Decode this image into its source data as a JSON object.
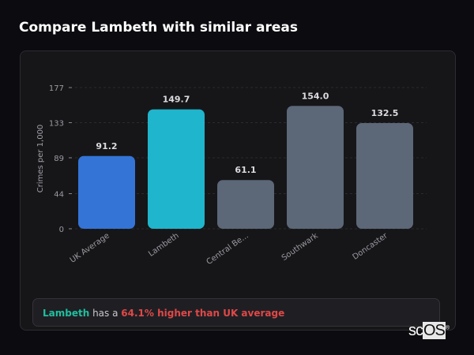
{
  "title": "Compare Lambeth with similar areas",
  "chart_data": {
    "type": "bar",
    "categories": [
      "UK Average",
      "Lambeth",
      "Central Be...",
      "Southwark",
      "Doncaster"
    ],
    "values": [
      91.2,
      149.7,
      61.1,
      154.0,
      132.5
    ],
    "value_labels": [
      "91.2",
      "149.7",
      "61.1",
      "154.0",
      "132.5"
    ],
    "colors": [
      "#3474d6",
      "#1fb5cc",
      "#5c6778",
      "#5c6778",
      "#5c6778"
    ],
    "ylabel": "Crimes per 1,000",
    "yticks": [
      0,
      44,
      89,
      133,
      177
    ],
    "ylim": [
      0,
      177
    ],
    "grid": true
  },
  "note": {
    "area": "Lambeth",
    "middle": " has a ",
    "comparison": "64.1% higher than UK average"
  },
  "logo": {
    "text_a": "sc",
    "text_b": "OS",
    "mark": "®"
  }
}
